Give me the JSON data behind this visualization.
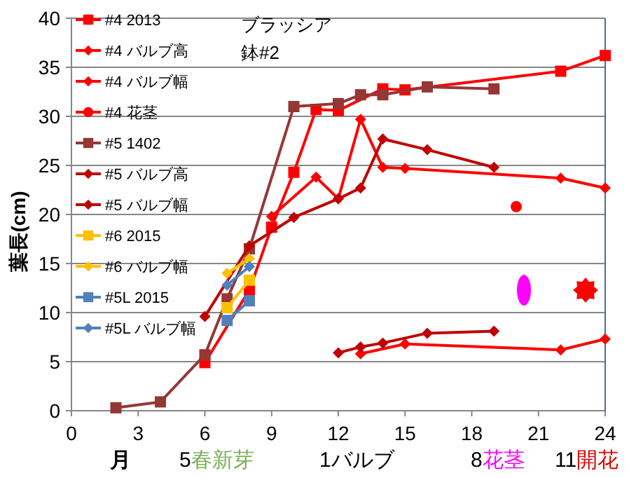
{
  "chart_data": {
    "type": "line",
    "title": "ブラッシア",
    "subtitle": "鉢#2",
    "xlabel": "月",
    "ylabel": "葉長(cm)",
    "annotations": [
      "5",
      "春新芽",
      "1バルブ",
      "8",
      "花茎",
      "11",
      "開花"
    ],
    "xlim": [
      0,
      24
    ],
    "ylim": [
      0,
      40
    ],
    "xticks": [
      0,
      3,
      6,
      9,
      12,
      15,
      18,
      21,
      24
    ],
    "yticks": [
      0,
      5,
      10,
      15,
      20,
      25,
      30,
      35,
      40
    ],
    "grid": "y",
    "legend": "left",
    "series": [
      {
        "name": "#4 2013",
        "color": "#ff0000",
        "marker": "square",
        "x": [
          6,
          8,
          9,
          10,
          11,
          12,
          14,
          15,
          22,
          24
        ],
        "values": [
          4.9,
          12.3,
          18.7,
          24.3,
          30.7,
          30.6,
          32.8,
          32.7,
          34.6,
          36.2
        ]
      },
      {
        "name": "#4 バルブ高",
        "color": "#ff0000",
        "marker": "diamond",
        "x": [
          13,
          15,
          22,
          24
        ],
        "values": [
          5.8,
          6.8,
          6.2,
          7.3
        ]
      },
      {
        "name": "#4 バルブ幅",
        "color": "#ff0000",
        "marker": "diamond",
        "x": [
          9,
          11,
          12,
          13,
          14,
          15,
          22,
          24
        ],
        "values": [
          19.8,
          23.8,
          21.6,
          29.7,
          24.8,
          24.7,
          23.7,
          22.7
        ]
      },
      {
        "name": "#4 花茎",
        "color": "#ff0000",
        "marker": "circle",
        "x": [
          20
        ],
        "values": [
          20.8
        ]
      },
      {
        "name": "#5 1402",
        "color": "#953735",
        "marker": "square",
        "x": [
          2,
          4,
          6,
          7,
          8,
          10,
          12,
          13,
          14,
          16,
          19
        ],
        "values": [
          0.3,
          0.9,
          5.7,
          11.4,
          16.5,
          31.0,
          31.3,
          32.2,
          32.2,
          33.0,
          32.8
        ]
      },
      {
        "name": "#5 バルブ高",
        "color": "#c00000",
        "marker": "diamond",
        "x": [
          12,
          13,
          14,
          16,
          19
        ],
        "values": [
          5.9,
          6.5,
          6.9,
          7.9,
          8.1
        ]
      },
      {
        "name": "#5 バルブ幅",
        "color": "#c00000",
        "marker": "diamond",
        "x": [
          6,
          8,
          10,
          12,
          13,
          14,
          16,
          19
        ],
        "values": [
          9.6,
          16.8,
          19.7,
          21.6,
          22.7,
          27.7,
          26.6,
          24.8
        ]
      },
      {
        "name": "#6 2015",
        "color": "#ffc000",
        "marker": "square",
        "x": [
          7,
          8
        ],
        "values": [
          10.5,
          13.3
        ]
      },
      {
        "name": "#6 バルブ幅",
        "color": "#ffc000",
        "marker": "diamond",
        "x": [
          7,
          8
        ],
        "values": [
          14.0,
          15.5
        ]
      },
      {
        "name": "#5L 2015",
        "color": "#4f81bd",
        "marker": "square",
        "x": [
          7,
          8
        ],
        "values": [
          9.2,
          11.2
        ]
      },
      {
        "name": "#5L バルブ幅",
        "color": "#4f81bd",
        "marker": "diamond",
        "x": [
          7,
          8
        ],
        "values": [
          12.8,
          14.7
        ]
      }
    ]
  }
}
